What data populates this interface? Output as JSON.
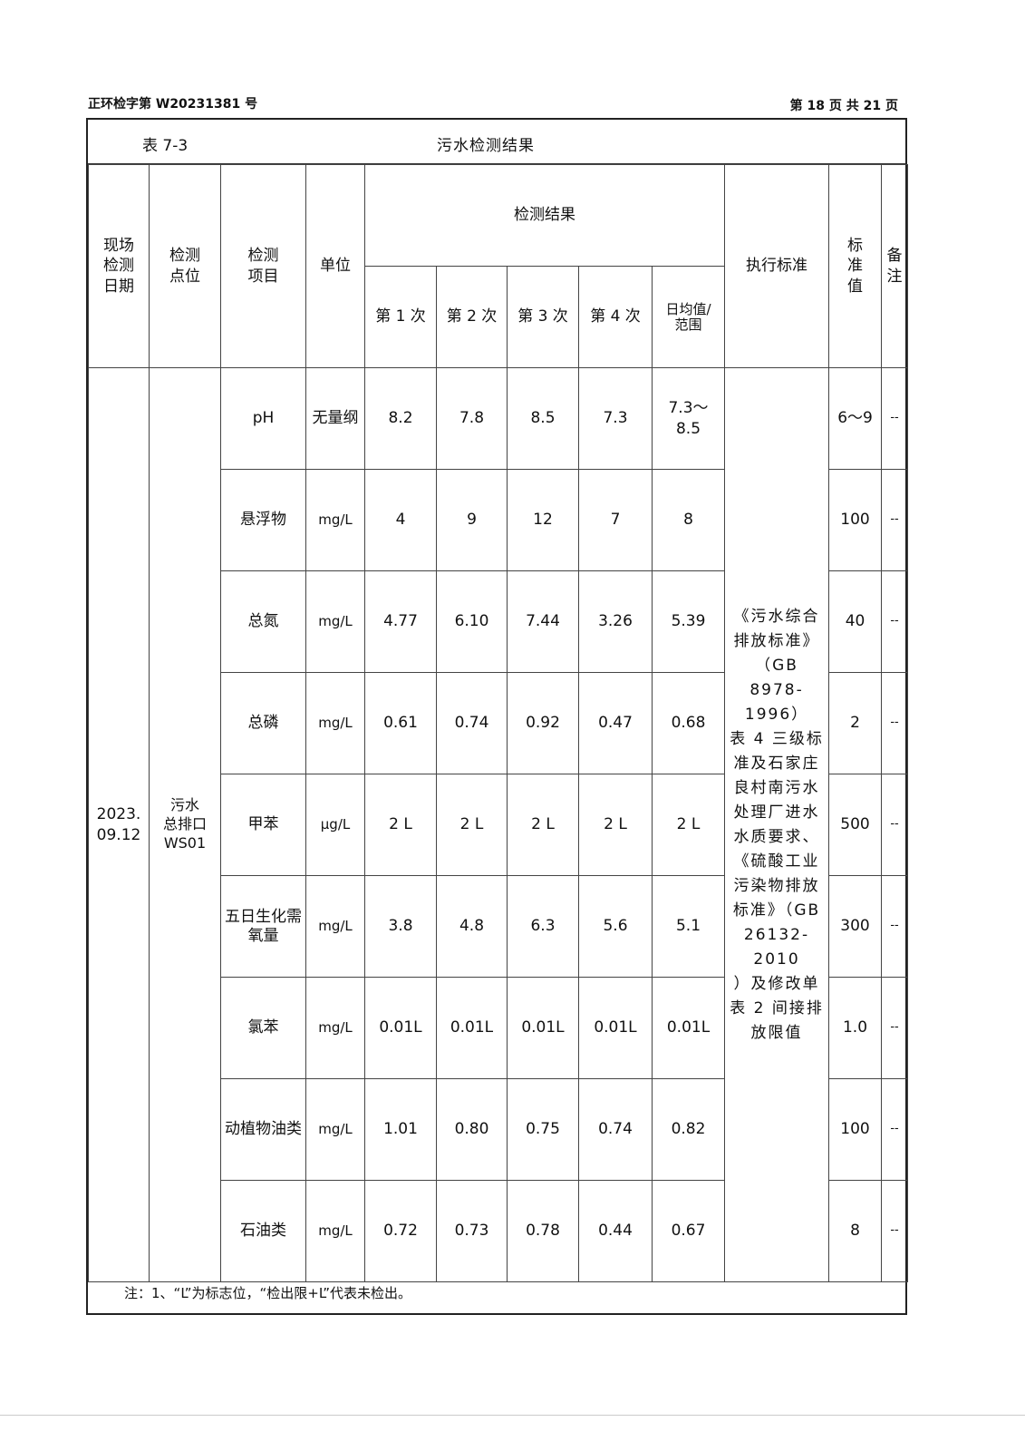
{
  "header": {
    "report_no": "正环检字第 W20231381 号",
    "page_info": "第 18 页 共 21 页"
  },
  "table": {
    "number": "表 7-3",
    "title": "污水检测结果",
    "col_headers": {
      "date": [
        "现场",
        "检测",
        "日期"
      ],
      "point": [
        "检测",
        "点位"
      ],
      "item": [
        "检测",
        "项目"
      ],
      "unit": "单位",
      "results": "检测结果",
      "runs": [
        "第 1 次",
        "第 2 次",
        "第 3 次",
        "第 4 次"
      ],
      "avg": [
        "日均值/",
        "范围"
      ],
      "standard": "执行标准",
      "limit": [
        "标",
        "准",
        "值"
      ],
      "remark": [
        "备",
        "注"
      ]
    },
    "date": [
      "2023.",
      "09.12"
    ],
    "point": [
      "污水",
      "总排口",
      "WS01"
    ],
    "standard_lines": [
      "《污水综合",
      "排放标准》",
      "（GB",
      "8978-1996）",
      "表 4 三级标",
      "准及石家庄",
      "良村南污水",
      "处理厂进水",
      "水质要求、",
      "《硫酸工业",
      "污染物排放",
      "标准》（GB",
      "26132-2010",
      "）及修改单",
      "表 2 间接排",
      "放限值"
    ],
    "rows": [
      {
        "item": "pH",
        "unit": "无量纲",
        "r1": "8.2",
        "r2": "7.8",
        "r3": "8.5",
        "r4": "7.3",
        "avg": "7.3～8.5",
        "limit": "6～9",
        "remark": "--"
      },
      {
        "item": "悬浮物",
        "unit": "mg/L",
        "r1": "4",
        "r2": "9",
        "r3": "12",
        "r4": "7",
        "avg": "8",
        "limit": "100",
        "remark": "--"
      },
      {
        "item": "总氮",
        "unit": "mg/L",
        "r1": "4.77",
        "r2": "6.10",
        "r3": "7.44",
        "r4": "3.26",
        "avg": "5.39",
        "limit": "40",
        "remark": "--"
      },
      {
        "item": "总磷",
        "unit": "mg/L",
        "r1": "0.61",
        "r2": "0.74",
        "r3": "0.92",
        "r4": "0.47",
        "avg": "0.68",
        "limit": "2",
        "remark": "--"
      },
      {
        "item": "甲苯",
        "unit": "μg/L",
        "r1": "2 L",
        "r2": "2 L",
        "r3": "2 L",
        "r4": "2 L",
        "avg": "2 L",
        "limit": "500",
        "remark": "--"
      },
      {
        "item": "五日生化需氧量",
        "unit": "mg/L",
        "r1": "3.8",
        "r2": "4.8",
        "r3": "6.3",
        "r4": "5.6",
        "avg": "5.1",
        "limit": "300",
        "remark": "--"
      },
      {
        "item": "氯苯",
        "unit": "mg/L",
        "r1": "0.01L",
        "r2": "0.01L",
        "r3": "0.01L",
        "r4": "0.01L",
        "avg": "0.01L",
        "limit": "1.0",
        "remark": "--"
      },
      {
        "item": "动植物油类",
        "unit": "mg/L",
        "r1": "1.01",
        "r2": "0.80",
        "r3": "0.75",
        "r4": "0.74",
        "avg": "0.82",
        "limit": "100",
        "remark": "--"
      },
      {
        "item": "石油类",
        "unit": "mg/L",
        "r1": "0.72",
        "r2": "0.73",
        "r3": "0.78",
        "r4": "0.44",
        "avg": "0.67",
        "limit": "8",
        "remark": "--"
      }
    ],
    "note": "注：1、“L”为标志位，“检出限+L”代表未检出。"
  }
}
